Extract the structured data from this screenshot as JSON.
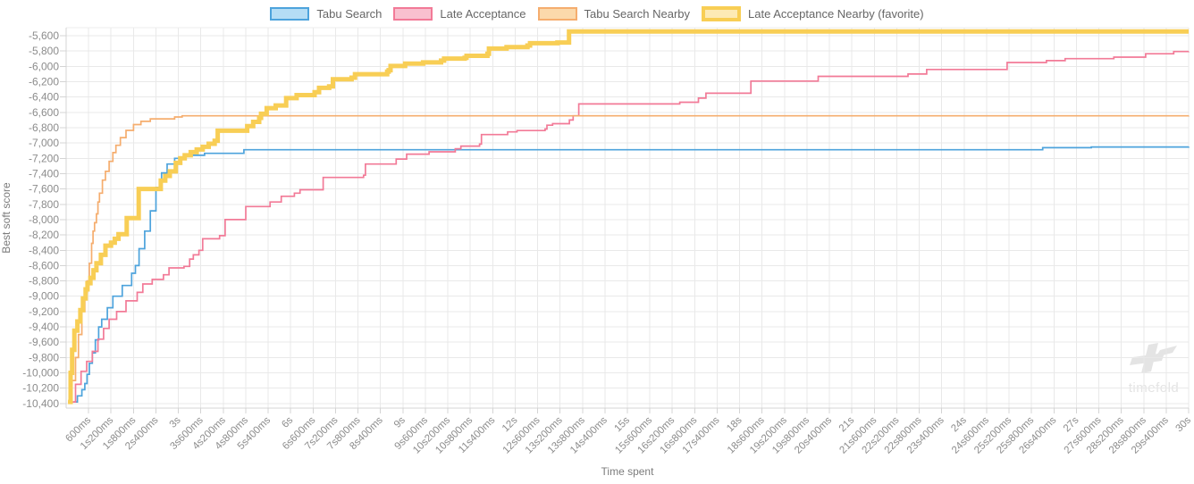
{
  "chart_data": {
    "type": "line",
    "stepped": true,
    "title": "",
    "xlabel": "Time spent",
    "ylabel": "Best soft score",
    "legend_position": "top",
    "grid": true,
    "watermark": "timefold",
    "xlim_ms": [
      0,
      30000
    ],
    "ylim": [
      -10460,
      -5495
    ],
    "x_tick_ms": [
      600,
      1200,
      1800,
      2400,
      3000,
      3600,
      4200,
      4800,
      5400,
      6000,
      6600,
      7200,
      7800,
      8400,
      9000,
      9600,
      10200,
      10800,
      11400,
      12000,
      12600,
      13200,
      13800,
      14400,
      15000,
      15600,
      16200,
      16800,
      17400,
      18000,
      18600,
      19200,
      19800,
      20400,
      21000,
      21600,
      22200,
      22800,
      23400,
      24000,
      24600,
      25200,
      25800,
      26400,
      27000,
      27600,
      28200,
      28800,
      29400,
      30000
    ],
    "x_tick_labels": [
      "600ms",
      "1s200ms",
      "1s800ms",
      "2s400ms",
      "3s",
      "3s600ms",
      "4s200ms",
      "4s800ms",
      "5s400ms",
      "6s",
      "6s600ms",
      "7s200ms",
      "7s800ms",
      "8s400ms",
      "9s",
      "9s600ms",
      "10s200ms",
      "10s800ms",
      "11s400ms",
      "12s",
      "12s600ms",
      "13s200ms",
      "13s800ms",
      "14s400ms",
      "15s",
      "15s600ms",
      "16s200ms",
      "16s800ms",
      "17s400ms",
      "18s",
      "18s600ms",
      "19s200ms",
      "19s800ms",
      "20s400ms",
      "21s",
      "21s600ms",
      "22s200ms",
      "22s800ms",
      "23s400ms",
      "24s",
      "24s600ms",
      "25s200ms",
      "25s800ms",
      "26s400ms",
      "27s",
      "27s600ms",
      "28s200ms",
      "28s800ms",
      "29s400ms",
      "30s"
    ],
    "y_tick_values": [
      -5600,
      -5800,
      -6000,
      -6200,
      -6400,
      -6600,
      -6800,
      -7000,
      -7200,
      -7400,
      -7600,
      -7800,
      -8000,
      -8200,
      -8400,
      -8600,
      -8800,
      -9000,
      -9200,
      -9400,
      -9600,
      -9800,
      -10000,
      -10200,
      -10400
    ],
    "y_tick_labels": [
      "-5,600",
      "-5,800",
      "-6,000",
      "-6,200",
      "-6,400",
      "-6,600",
      "-6,800",
      "-7,000",
      "-7,200",
      "-7,400",
      "-7,600",
      "-7,800",
      "-8,000",
      "-8,200",
      "-8,400",
      "-8,600",
      "-8,800",
      "-9,000",
      "-9,200",
      "-9,400",
      "-9,600",
      "-9,800",
      "-10,000",
      "-10,200",
      "-10,400"
    ],
    "series": [
      {
        "name": "Tabu Search",
        "slug": "tabu-search",
        "color": "#4da3dc",
        "fill": "#b5ddf5",
        "width": 1.7,
        "favorite": false,
        "points": [
          [
            200,
            -10380
          ],
          [
            300,
            -10300
          ],
          [
            420,
            -10220
          ],
          [
            500,
            -10140
          ],
          [
            560,
            -10020
          ],
          [
            620,
            -9875
          ],
          [
            700,
            -9740
          ],
          [
            780,
            -9570
          ],
          [
            870,
            -9400
          ],
          [
            950,
            -9300
          ],
          [
            1100,
            -9150
          ],
          [
            1250,
            -9000
          ],
          [
            1500,
            -8860
          ],
          [
            1750,
            -8700
          ],
          [
            1850,
            -8600
          ],
          [
            1950,
            -8380
          ],
          [
            2100,
            -8150
          ],
          [
            2250,
            -7885
          ],
          [
            2400,
            -7580
          ],
          [
            2550,
            -7390
          ],
          [
            2700,
            -7275
          ],
          [
            2900,
            -7200
          ],
          [
            3200,
            -7160
          ],
          [
            3700,
            -7135
          ],
          [
            4750,
            -7088
          ],
          [
            26100,
            -7062
          ],
          [
            27400,
            -7052
          ],
          [
            30000,
            -7048
          ]
        ]
      },
      {
        "name": "Late Acceptance",
        "slug": "late-acceptance",
        "color": "#f27a97",
        "fill": "#f9c0cf",
        "width": 1.7,
        "favorite": false,
        "points": [
          [
            100,
            -10380
          ],
          [
            250,
            -10150
          ],
          [
            400,
            -9980
          ],
          [
            550,
            -9850
          ],
          [
            700,
            -9720
          ],
          [
            850,
            -9560
          ],
          [
            1000,
            -9420
          ],
          [
            1150,
            -9300
          ],
          [
            1350,
            -9200
          ],
          [
            1600,
            -9060
          ],
          [
            1900,
            -8950
          ],
          [
            2050,
            -8840
          ],
          [
            2300,
            -8780
          ],
          [
            2600,
            -8720
          ],
          [
            2750,
            -8630
          ],
          [
            3150,
            -8610
          ],
          [
            3300,
            -8515
          ],
          [
            3400,
            -8460
          ],
          [
            3550,
            -8400
          ],
          [
            3650,
            -8250
          ],
          [
            4100,
            -8210
          ],
          [
            4250,
            -8000
          ],
          [
            4800,
            -7830
          ],
          [
            5450,
            -7770
          ],
          [
            5750,
            -7695
          ],
          [
            6100,
            -7655
          ],
          [
            6250,
            -7610
          ],
          [
            6870,
            -7450
          ],
          [
            7950,
            -7420
          ],
          [
            8000,
            -7275
          ],
          [
            8820,
            -7210
          ],
          [
            9100,
            -7145
          ],
          [
            9700,
            -7115
          ],
          [
            10400,
            -7075
          ],
          [
            10550,
            -7040
          ],
          [
            11050,
            -7015
          ],
          [
            11100,
            -6890
          ],
          [
            11800,
            -6855
          ],
          [
            12050,
            -6838
          ],
          [
            12800,
            -6818
          ],
          [
            12850,
            -6768
          ],
          [
            13000,
            -6748
          ],
          [
            13450,
            -6700
          ],
          [
            13550,
            -6645
          ],
          [
            13700,
            -6490
          ],
          [
            16400,
            -6468
          ],
          [
            16900,
            -6415
          ],
          [
            17100,
            -6350
          ],
          [
            18300,
            -6192
          ],
          [
            20100,
            -6130
          ],
          [
            22500,
            -6100
          ],
          [
            23000,
            -6040
          ],
          [
            25150,
            -5950
          ],
          [
            26200,
            -5925
          ],
          [
            26700,
            -5900
          ],
          [
            28000,
            -5880
          ],
          [
            28850,
            -5835
          ],
          [
            29600,
            -5806
          ],
          [
            30000,
            -5805
          ]
        ]
      },
      {
        "name": "Tabu Search Nearby",
        "slug": "tabu-search-nearby",
        "color": "#f5ad6e",
        "fill": "#fbd9ab",
        "width": 1.7,
        "favorite": false,
        "points": [
          [
            50,
            -10380
          ],
          [
            150,
            -10100
          ],
          [
            250,
            -9800
          ],
          [
            330,
            -9500
          ],
          [
            420,
            -9200
          ],
          [
            500,
            -8950
          ],
          [
            560,
            -8800
          ],
          [
            620,
            -8570
          ],
          [
            680,
            -8310
          ],
          [
            720,
            -8150
          ],
          [
            760,
            -8040
          ],
          [
            810,
            -7925
          ],
          [
            850,
            -7770
          ],
          [
            890,
            -7655
          ],
          [
            970,
            -7485
          ],
          [
            1050,
            -7370
          ],
          [
            1150,
            -7240
          ],
          [
            1250,
            -7125
          ],
          [
            1330,
            -7030
          ],
          [
            1450,
            -6930
          ],
          [
            1600,
            -6835
          ],
          [
            1800,
            -6760
          ],
          [
            2000,
            -6718
          ],
          [
            2250,
            -6685
          ],
          [
            2900,
            -6660
          ],
          [
            3100,
            -6645
          ],
          [
            30000,
            -6643
          ]
        ]
      },
      {
        "name": "Late Acceptance Nearby (favorite)",
        "slug": "late-acceptance-nearby",
        "color": "#f8ce55",
        "fill": "#fdeab5",
        "width": 5,
        "favorite": true,
        "points": [
          [
            50,
            -10380
          ],
          [
            120,
            -10000
          ],
          [
            160,
            -9700
          ],
          [
            220,
            -9450
          ],
          [
            300,
            -9330
          ],
          [
            380,
            -9180
          ],
          [
            450,
            -9030
          ],
          [
            520,
            -8910
          ],
          [
            570,
            -8830
          ],
          [
            650,
            -8760
          ],
          [
            730,
            -8660
          ],
          [
            810,
            -8570
          ],
          [
            930,
            -8460
          ],
          [
            1050,
            -8340
          ],
          [
            1200,
            -8300
          ],
          [
            1300,
            -8250
          ],
          [
            1400,
            -8190
          ],
          [
            1620,
            -7980
          ],
          [
            1940,
            -7600
          ],
          [
            2530,
            -7490
          ],
          [
            2650,
            -7430
          ],
          [
            2770,
            -7370
          ],
          [
            2930,
            -7260
          ],
          [
            3050,
            -7200
          ],
          [
            3170,
            -7160
          ],
          [
            3330,
            -7120
          ],
          [
            3490,
            -7085
          ],
          [
            3650,
            -7050
          ],
          [
            3810,
            -7010
          ],
          [
            3970,
            -6970
          ],
          [
            4050,
            -6840
          ],
          [
            4840,
            -6780
          ],
          [
            5000,
            -6725
          ],
          [
            5160,
            -6672
          ],
          [
            5210,
            -6618
          ],
          [
            5360,
            -6545
          ],
          [
            5600,
            -6510
          ],
          [
            5880,
            -6415
          ],
          [
            6160,
            -6375
          ],
          [
            6640,
            -6338
          ],
          [
            6760,
            -6280
          ],
          [
            7030,
            -6262
          ],
          [
            7130,
            -6168
          ],
          [
            7630,
            -6148
          ],
          [
            7720,
            -6102
          ],
          [
            8580,
            -6070
          ],
          [
            8620,
            -6050
          ],
          [
            8670,
            -5995
          ],
          [
            9060,
            -5965
          ],
          [
            9540,
            -5948
          ],
          [
            10020,
            -5925
          ],
          [
            10100,
            -5898
          ],
          [
            10650,
            -5888
          ],
          [
            10700,
            -5862
          ],
          [
            11260,
            -5835
          ],
          [
            11300,
            -5768
          ],
          [
            11770,
            -5748
          ],
          [
            12330,
            -5728
          ],
          [
            12400,
            -5698
          ],
          [
            13130,
            -5688
          ],
          [
            13440,
            -5545
          ],
          [
            30000,
            -5545
          ]
        ]
      }
    ]
  },
  "colors": {
    "background": "#ffffff",
    "grid": "#e9e9e9",
    "axis_border": "#d4d4d4",
    "tick_text": "#8c8c8c",
    "axis_title_text": "#7c7c7c",
    "legend_text": "#666666",
    "watermark": "#e4e4e4"
  }
}
